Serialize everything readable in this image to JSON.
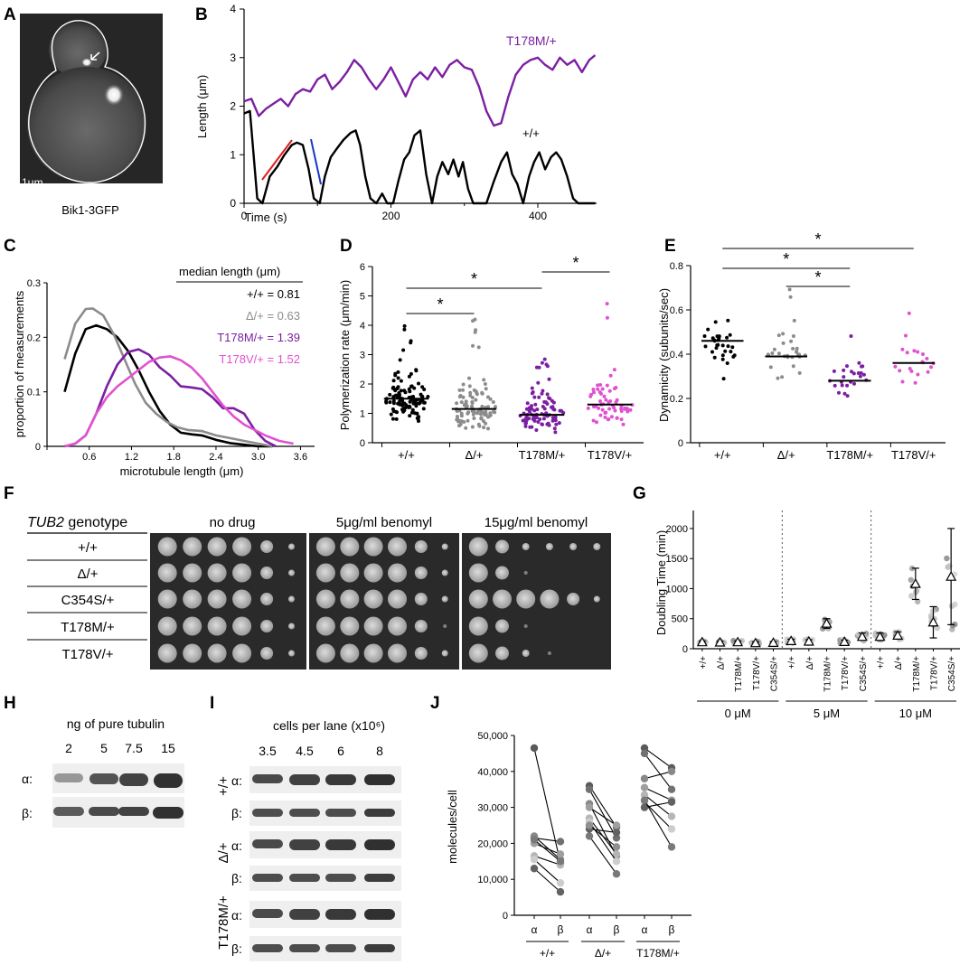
{
  "chart_data": [
    {
      "panel": "A",
      "type": "image",
      "scale_bar": "1μm",
      "caption": "Bik1-3GFP"
    },
    {
      "panel": "B",
      "type": "line",
      "xlabel": "Time (s)",
      "ylabel": "Length (μm)",
      "xlim": [
        0,
        480
      ],
      "ylim": [
        0,
        4
      ],
      "xticks": [
        "0",
        "200",
        "400"
      ],
      "yticks": [
        "0",
        "1",
        "2",
        "3",
        "4"
      ],
      "series": [
        {
          "name": "T178M/+",
          "color": "#7B1FA2",
          "x": [
            0,
            10,
            20,
            30,
            40,
            50,
            60,
            70,
            80,
            90,
            100,
            110,
            120,
            130,
            140,
            150,
            160,
            170,
            180,
            190,
            200,
            210,
            220,
            230,
            240,
            250,
            260,
            270,
            280,
            290,
            300,
            310,
            320,
            330,
            340,
            350,
            360,
            370,
            380,
            390,
            400,
            410,
            420,
            430,
            440,
            450,
            460,
            470,
            478
          ],
          "y": [
            2.1,
            2.15,
            1.8,
            1.95,
            2.05,
            2.15,
            2.0,
            2.25,
            2.35,
            2.3,
            2.55,
            2.65,
            2.35,
            2.5,
            2.7,
            2.95,
            2.8,
            2.55,
            2.35,
            2.55,
            2.8,
            2.5,
            2.2,
            2.55,
            2.7,
            2.55,
            2.8,
            2.6,
            2.85,
            2.95,
            2.8,
            2.75,
            2.4,
            1.9,
            1.6,
            1.65,
            2.2,
            2.65,
            2.85,
            2.95,
            3.0,
            2.85,
            2.75,
            3.0,
            2.85,
            2.95,
            2.7,
            2.95,
            3.05
          ]
        },
        {
          "name": "+/+",
          "color": "#000000",
          "x": [
            0,
            8,
            18,
            25,
            35,
            45,
            55,
            65,
            72,
            80,
            88,
            95,
            103,
            110,
            118,
            125,
            135,
            145,
            152,
            158,
            165,
            172,
            180,
            188,
            195,
            203,
            210,
            218,
            225,
            232,
            240,
            248,
            256,
            263,
            270,
            278,
            285,
            292,
            298,
            305,
            312,
            320,
            330,
            340,
            350,
            358,
            365,
            372,
            380,
            388,
            395,
            402,
            410,
            418,
            425,
            432,
            440,
            448,
            455,
            462,
            470,
            478
          ],
          "y": [
            1.85,
            1.9,
            0.1,
            0.0,
            0.55,
            0.75,
            1.0,
            1.2,
            1.25,
            1.2,
            0.7,
            0.1,
            0.0,
            0.55,
            0.95,
            1.1,
            1.3,
            1.45,
            1.5,
            1.2,
            0.55,
            0.1,
            0.0,
            0.2,
            0.0,
            0.0,
            0.45,
            0.9,
            1.05,
            1.4,
            1.5,
            0.6,
            0.0,
            0.55,
            0.85,
            0.6,
            0.9,
            0.55,
            0.85,
            0.3,
            0.0,
            0.0,
            0.0,
            0.45,
            0.85,
            1.05,
            0.6,
            0.4,
            0.0,
            0.55,
            0.85,
            1.05,
            0.7,
            0.95,
            1.05,
            0.9,
            0.55,
            0.1,
            0.0,
            0.0,
            0.0,
            0.0
          ]
        }
      ],
      "labels": [
        "T178M/+",
        "+/+"
      ]
    },
    {
      "panel": "C",
      "type": "line",
      "xlabel": "microtubule length (μm)",
      "ylabel": "proportion of measurements",
      "xlim": [
        0,
        3.8
      ],
      "ylim": [
        0,
        0.3
      ],
      "xticks": [
        "0",
        "0.6",
        "1.2",
        "1.8",
        "2.4",
        "3.0",
        "3.6"
      ],
      "yticks": [
        "0",
        "0.1",
        "0.2",
        "0.3"
      ],
      "legend_title": "median length (μm)",
      "series": [
        {
          "name": "+/+ = 0.81",
          "color": "#000000",
          "x": [
            0.25,
            0.4,
            0.55,
            0.7,
            0.85,
            1.0,
            1.15,
            1.3,
            1.45,
            1.6,
            1.75,
            1.9,
            2.05,
            2.2,
            2.4,
            2.6,
            2.8,
            3.0,
            3.2
          ],
          "y": [
            0.1,
            0.17,
            0.215,
            0.222,
            0.215,
            0.2,
            0.175,
            0.14,
            0.1,
            0.065,
            0.04,
            0.025,
            0.022,
            0.02,
            0.012,
            0.006,
            0.003,
            0.0,
            0.0
          ]
        },
        {
          "name": "Δ/+ = 0.63",
          "color": "#8C8C8C",
          "x": [
            0.25,
            0.4,
            0.55,
            0.65,
            0.8,
            0.95,
            1.1,
            1.25,
            1.4,
            1.55,
            1.7,
            1.85,
            2.0,
            2.2,
            2.4,
            2.6,
            2.8,
            3.0,
            3.2
          ],
          "y": [
            0.16,
            0.225,
            0.252,
            0.253,
            0.24,
            0.205,
            0.16,
            0.115,
            0.08,
            0.06,
            0.045,
            0.035,
            0.03,
            0.028,
            0.02,
            0.015,
            0.01,
            0.005,
            0.0
          ]
        },
        {
          "name": "T178M/+ = 1.39",
          "color": "#7B1FA2",
          "x": [
            0.25,
            0.4,
            0.55,
            0.7,
            0.85,
            1.0,
            1.15,
            1.3,
            1.45,
            1.6,
            1.75,
            1.9,
            2.05,
            2.2,
            2.35,
            2.5,
            2.65,
            2.8,
            2.95,
            3.1,
            3.25
          ],
          "y": [
            0.0,
            0.005,
            0.02,
            0.06,
            0.11,
            0.15,
            0.173,
            0.178,
            0.168,
            0.145,
            0.13,
            0.11,
            0.108,
            0.105,
            0.09,
            0.07,
            0.07,
            0.06,
            0.03,
            0.01,
            0.0
          ]
        },
        {
          "name": "T178V/+ = 1.52",
          "color": "#E052D0",
          "x": [
            0.25,
            0.4,
            0.55,
            0.7,
            0.85,
            1.0,
            1.15,
            1.3,
            1.45,
            1.6,
            1.75,
            1.9,
            2.05,
            2.2,
            2.35,
            2.5,
            2.65,
            2.8,
            2.95,
            3.1,
            3.3,
            3.5
          ],
          "y": [
            0.0,
            0.005,
            0.02,
            0.06,
            0.09,
            0.11,
            0.125,
            0.14,
            0.155,
            0.163,
            0.165,
            0.158,
            0.145,
            0.125,
            0.1,
            0.075,
            0.055,
            0.04,
            0.03,
            0.02,
            0.01,
            0.005
          ]
        }
      ]
    },
    {
      "panel": "D",
      "type": "scatter",
      "ylabel": "Polymerization rate (μm/min)",
      "ylim": [
        0,
        6
      ],
      "yticks": [
        "0",
        "1",
        "2",
        "3",
        "4",
        "5",
        "6"
      ],
      "categories": [
        "+/+",
        "Δ/+",
        "T178M/+",
        "T178V/+"
      ],
      "means": [
        1.5,
        1.15,
        0.95,
        1.3
      ],
      "spread_max": [
        4.0,
        4.2,
        3.8,
        5.6
      ],
      "counts": [
        110,
        100,
        90,
        60
      ],
      "colors": [
        "#000000",
        "#8C8C8C",
        "#7B1FA2",
        "#E052D0"
      ],
      "significance": [
        {
          "from": 0,
          "to": 1,
          "label": "*"
        },
        {
          "from": 0,
          "to": 2,
          "label": "*"
        },
        {
          "from": 2,
          "to": 3,
          "label": "*"
        }
      ]
    },
    {
      "panel": "E",
      "type": "scatter",
      "ylabel": "Dynamicity (subunits/sec)",
      "ylim": [
        0,
        0.8
      ],
      "yticks": [
        "0",
        "0.2",
        "0.4",
        "0.6",
        "0.8"
      ],
      "categories": [
        "+/+",
        "Δ/+",
        "T178M/+",
        "T178V/+"
      ],
      "means": [
        0.46,
        0.39,
        0.28,
        0.36
      ],
      "spread_max": [
        0.72,
        0.71,
        0.56,
        0.62
      ],
      "spread_min": [
        0.27,
        0.23,
        0.17,
        0.21
      ],
      "counts": [
        30,
        30,
        25,
        20
      ],
      "colors": [
        "#000000",
        "#8C8C8C",
        "#7B1FA2",
        "#E052D0"
      ],
      "significance": [
        {
          "from": 0,
          "to": 3,
          "label": "*"
        },
        {
          "from": 0,
          "to": 2,
          "label": "*"
        },
        {
          "from": 1,
          "to": 2,
          "label": "*"
        }
      ]
    },
    {
      "panel": "F",
      "type": "table",
      "header": "TUB2 genotype",
      "header_italic": "TUB2",
      "header_rest": " genotype",
      "genotypes": [
        "+/+",
        "Δ/+",
        "C354S/+",
        "T178M/+",
        "T178V/+"
      ],
      "conditions": [
        "no drug",
        "5μg/ml benomyl",
        "15μg/ml benomyl"
      ],
      "spot_counts": [
        [
          6,
          6,
          6
        ],
        [
          6,
          6,
          2
        ],
        [
          6,
          6,
          6
        ],
        [
          6,
          5,
          2
        ],
        [
          6,
          6,
          3
        ]
      ]
    },
    {
      "panel": "G",
      "type": "scatter",
      "ylabel": "Doubling Time (min)",
      "ylim": [
        0,
        2300
      ],
      "yticks": [
        "0",
        "500",
        "1000",
        "1500",
        "2000"
      ],
      "groups": [
        "0 μM",
        "5 μM",
        "10 μM"
      ],
      "categories": [
        "+/+",
        "Δ/+",
        "T178M/+",
        "T178V/+",
        "C354S/+"
      ],
      "means": [
        [
          110,
          105,
          110,
          95,
          100
        ],
        [
          130,
          120,
          420,
          115,
          200
        ],
        [
          200,
          220,
          1080,
          440,
          1200
        ]
      ],
      "errors": [
        [
          20,
          20,
          20,
          20,
          20
        ],
        [
          30,
          30,
          80,
          30,
          60
        ],
        [
          60,
          60,
          260,
          260,
          800
        ]
      ]
    },
    {
      "panel": "H",
      "type": "image",
      "title": "ng of pure tubulin",
      "lanes": [
        "2",
        "5",
        "7.5",
        "15"
      ],
      "rows": [
        "α:",
        "β:"
      ]
    },
    {
      "panel": "I",
      "type": "image",
      "title": "cells per lane (x10⁶)",
      "lanes": [
        "3.5",
        "4.5",
        "6",
        "8"
      ],
      "row_label": "α:",
      "row_label_b": "β:",
      "genotypes": [
        "+/+",
        "Δ/+",
        "T178M/+"
      ]
    },
    {
      "panel": "J",
      "type": "scatter",
      "ylabel": "molecules/cell",
      "ylim": [
        0,
        50000
      ],
      "yticks": [
        "0",
        "10,000",
        "20,000",
        "30,000",
        "40,000",
        "50,000"
      ],
      "x_ticklabels": [
        "α",
        "β",
        "α",
        "β",
        "α",
        "β"
      ],
      "groups": [
        "+/+",
        "Δ/+",
        "T178M/+"
      ],
      "pairs": [
        [
          [
            46500,
            14500
          ],
          [
            21500,
            20500
          ],
          [
            22000,
            15500
          ],
          [
            20000,
            17000
          ],
          [
            16500,
            14000
          ],
          [
            15500,
            9000
          ],
          [
            13000,
            6500
          ],
          [
            21000,
            15000
          ]
        ],
        [
          [
            36000,
            24500
          ],
          [
            35000,
            21500
          ],
          [
            31000,
            16500
          ],
          [
            30000,
            25000
          ],
          [
            27000,
            17000
          ],
          [
            26000,
            15000
          ],
          [
            24000,
            23000
          ],
          [
            22000,
            11500
          ],
          [
            25000,
            19000
          ]
        ],
        [
          [
            46500,
            41000
          ],
          [
            45000,
            35000
          ],
          [
            38000,
            40000
          ],
          [
            35500,
            32000
          ],
          [
            33500,
            27500
          ],
          [
            31500,
            24000
          ],
          [
            30000,
            31500
          ],
          [
            32000,
            19000
          ]
        ]
      ]
    }
  ]
}
